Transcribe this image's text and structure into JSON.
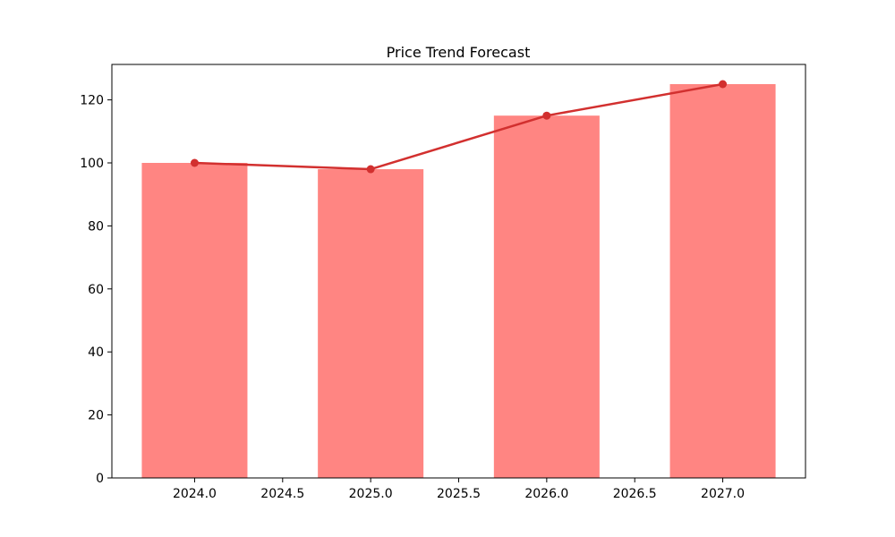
{
  "chart_data": {
    "type": "bar",
    "title": "Price Trend Forecast",
    "xlabel": "",
    "ylabel": "",
    "x": [
      2024,
      2025,
      2026,
      2027
    ],
    "x_ticks": [
      "2024.0",
      "2024.5",
      "2025.0",
      "2025.5",
      "2026.0",
      "2026.5",
      "2027.0"
    ],
    "x_tick_values": [
      2024.0,
      2024.5,
      2025.0,
      2025.5,
      2026.0,
      2026.5,
      2027.0
    ],
    "y_ticks": [
      "0",
      "20",
      "40",
      "60",
      "80",
      "100",
      "120"
    ],
    "y_tick_values": [
      0,
      20,
      40,
      60,
      80,
      100,
      120
    ],
    "xlim": [
      2023.53,
      2027.47
    ],
    "ylim": [
      0,
      131.25
    ],
    "bar_width": 0.6,
    "grid": false,
    "series": [
      {
        "kind": "bar",
        "values": [
          100,
          98,
          115,
          125
        ],
        "color": "#ff8582"
      },
      {
        "kind": "line",
        "values": [
          100,
          98,
          115,
          125
        ],
        "color": "#d2302f",
        "marker": "circle"
      }
    ]
  }
}
